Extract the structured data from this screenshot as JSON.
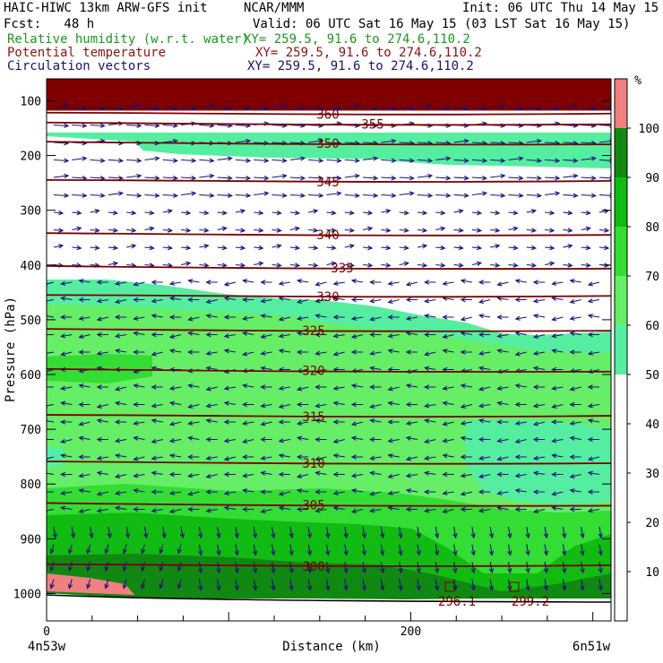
{
  "header": {
    "title_left": "HAIC-HIWC 13km ARW-GFS init",
    "org": "NCAR/MMM",
    "init": "Init: 06 UTC Thu 14 May 15",
    "fcst": "Fcst:   48 h",
    "valid": "Valid: 06 UTC Sat 16 May 15 (03 LST Sat 16 May 15)",
    "field1_name": "Relative humidity (w.r.t. water)",
    "field1_xy": "XY= 259.5, 91.6 to 274.6,110.2",
    "field2_name": "Potential temperature",
    "field2_xy": "XY= 259.5, 91.6 to 274.6,110.2",
    "field3_name": "Circulation vectors",
    "field3_xy": "XY= 259.5, 91.6 to 274.6,110.2"
  },
  "colors": {
    "rh_fills": [
      "#ffffff",
      "#ffffff",
      "#ffffff",
      "#ffffff",
      "#ffffff",
      "#55eea0",
      "#66ee66",
      "#33dd33",
      "#11bb11",
      "#118811",
      "#f08080"
    ],
    "theta_line": "#7a0000",
    "vector": "#14147a",
    "top_band": "#800000"
  },
  "chart_data": {
    "type": "cross-section",
    "xlabel": "Distance (km)",
    "ylabel": "Pressure (hPa)",
    "x_ticks": [
      0,
      200
    ],
    "x_tick_labels": [
      "0",
      "200"
    ],
    "xlim": [
      0,
      310
    ],
    "y_ticks": [
      100,
      200,
      300,
      400,
      500,
      600,
      700,
      800,
      900,
      1000
    ],
    "y_tick_labels": [
      "100",
      "200",
      "300",
      "400",
      "500",
      "600",
      "700",
      "800",
      "900",
      "1000"
    ],
    "ylim": [
      1050,
      60
    ],
    "left_endpoint_label": "4n53w",
    "right_endpoint_label": "6n51w",
    "colorbar": {
      "unit": "%",
      "levels": [
        10,
        20,
        30,
        40,
        50,
        60,
        70,
        80,
        90,
        100
      ],
      "labels": [
        "10",
        "20",
        "30",
        "40",
        "50",
        "60",
        "70",
        "80",
        "90",
        "100"
      ]
    },
    "theta_contours": [
      {
        "label": "360",
        "p": 125
      },
      {
        "label": "355",
        "p": 143
      },
      {
        "label": "350",
        "p": 178
      },
      {
        "label": "345",
        "p": 248
      },
      {
        "label": "340",
        "p": 345
      },
      {
        "label": "335",
        "p": 405
      },
      {
        "label": "330",
        "p": 458
      },
      {
        "label": "325",
        "p": 520
      },
      {
        "label": "320",
        "p": 593
      },
      {
        "label": "315",
        "p": 677
      },
      {
        "label": "310",
        "p": 762
      },
      {
        "label": "305",
        "p": 838
      },
      {
        "label": "300",
        "p": 950
      }
    ],
    "surface_labels": [
      "296.1",
      "299.2"
    ],
    "rh_regions": [
      {
        "name": "top-band",
        "value": 100
      },
      {
        "name": "upper-moist-band",
        "value": 55
      },
      {
        "name": "mid-layer",
        "value": 65
      },
      {
        "name": "mid-core",
        "value": 75
      },
      {
        "name": "lower-layer",
        "value": 85
      },
      {
        "name": "boundary-layer",
        "value": 95
      }
    ]
  }
}
